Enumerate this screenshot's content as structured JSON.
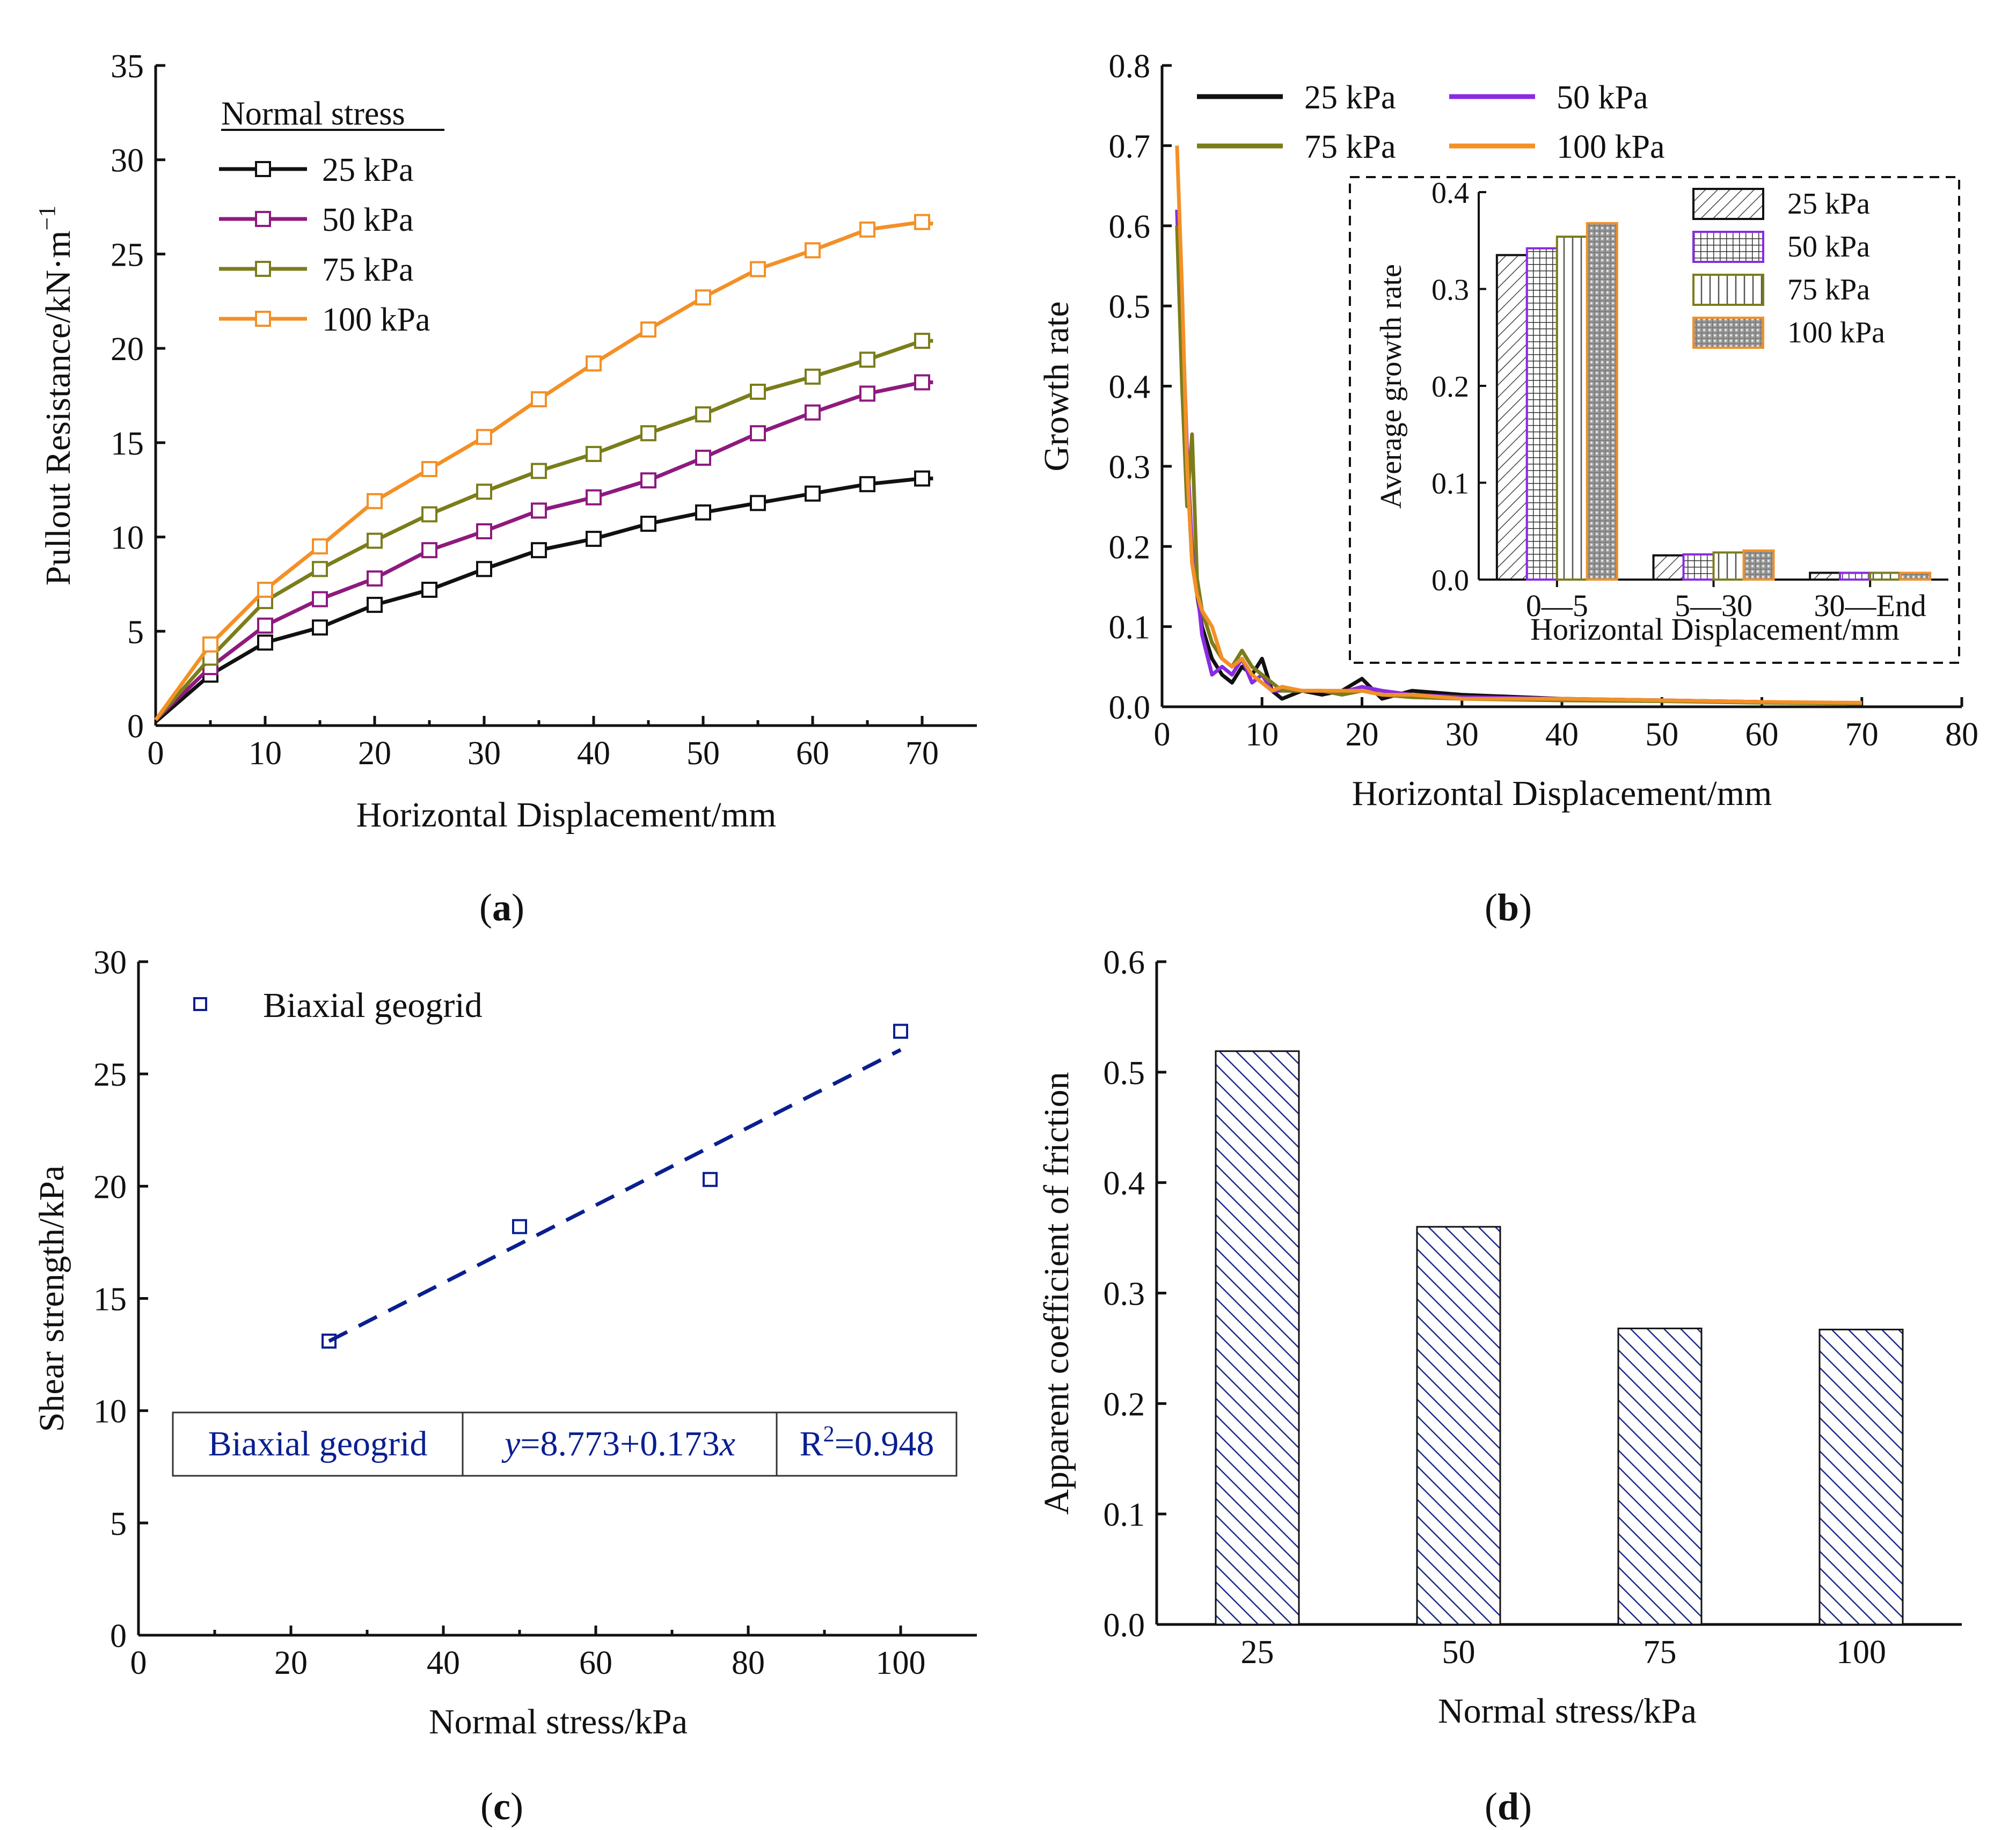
{
  "captions": {
    "a": "(a)",
    "b": "(b)",
    "c": "(c)",
    "d": "(d)"
  },
  "colors": {
    "s25": "#111111",
    "s50": "#8e1a7e",
    "s75": "#7b7d1b",
    "s100": "#f39026",
    "s50_b": "#8a2be2",
    "fit_blue": "#0a1f8f",
    "hatch_blue": "#1b2a8a"
  },
  "chart_data": [
    {
      "id": "a",
      "type": "line",
      "xlabel": "Horizontal Displacement/mm",
      "ylabel": "Pullout Resistance/kN·m",
      "ylabel_sup": "−1",
      "xlim": [
        0,
        75
      ],
      "ylim": [
        0,
        35
      ],
      "xticks": [
        0,
        10,
        20,
        30,
        40,
        50,
        60,
        70
      ],
      "yticks": [
        0,
        5,
        10,
        15,
        20,
        25,
        30,
        35
      ],
      "legend_title": "Normal stress",
      "series": [
        {
          "name": "25 kPa",
          "color": "#111111",
          "x": [
            0,
            5,
            10,
            15,
            20,
            25,
            30,
            35,
            40,
            45,
            50,
            55,
            60,
            65,
            70,
            71
          ],
          "y": [
            0.2,
            2.7,
            4.4,
            5.2,
            6.4,
            7.2,
            8.3,
            9.3,
            9.9,
            10.7,
            11.3,
            11.8,
            12.3,
            12.8,
            13.1,
            13.1
          ]
        },
        {
          "name": "50 kPa",
          "color": "#8e1a7e",
          "x": [
            0,
            5,
            10,
            15,
            20,
            25,
            30,
            35,
            40,
            45,
            50,
            55,
            60,
            65,
            70,
            71
          ],
          "y": [
            0.3,
            3.1,
            5.3,
            6.7,
            7.8,
            9.3,
            10.3,
            11.4,
            12.1,
            13.0,
            14.2,
            15.5,
            16.6,
            17.6,
            18.2,
            18.2
          ]
        },
        {
          "name": "75 kPa",
          "color": "#7b7d1b",
          "x": [
            0,
            5,
            10,
            15,
            20,
            25,
            30,
            35,
            40,
            45,
            50,
            55,
            60,
            65,
            70,
            71
          ],
          "y": [
            0.3,
            3.6,
            6.6,
            8.3,
            9.8,
            11.2,
            12.4,
            13.5,
            14.4,
            15.5,
            16.5,
            17.7,
            18.5,
            19.4,
            20.4,
            20.4
          ]
        },
        {
          "name": "100 kPa",
          "color": "#f39026",
          "x": [
            0,
            5,
            10,
            15,
            20,
            25,
            30,
            35,
            40,
            45,
            50,
            55,
            60,
            65,
            70,
            71
          ],
          "y": [
            0.3,
            4.3,
            7.2,
            9.5,
            11.9,
            13.6,
            15.3,
            17.3,
            19.2,
            21.0,
            22.7,
            24.2,
            25.2,
            26.3,
            26.7,
            26.6
          ]
        }
      ]
    },
    {
      "id": "b",
      "type": "line",
      "xlabel": "Horizontal Displacement/mm",
      "ylabel": "Growth rate",
      "xlim": [
        0,
        80
      ],
      "ylim": [
        0,
        0.8
      ],
      "xticks": [
        0,
        10,
        20,
        30,
        40,
        50,
        60,
        70,
        80
      ],
      "yticks": [
        0.0,
        0.1,
        0.2,
        0.3,
        0.4,
        0.5,
        0.6,
        0.7,
        0.8
      ],
      "series": [
        {
          "name": "25 kPa",
          "color": "#111111",
          "x": [
            1.5,
            2,
            2.5,
            3,
            3.5,
            4,
            5,
            6,
            7,
            8,
            9,
            10,
            11,
            12,
            14,
            16,
            18,
            20,
            22,
            25,
            30,
            40,
            50,
            60,
            70
          ],
          "y": [
            0.62,
            0.45,
            0.3,
            0.18,
            0.14,
            0.1,
            0.06,
            0.04,
            0.03,
            0.05,
            0.04,
            0.06,
            0.02,
            0.01,
            0.02,
            0.015,
            0.02,
            0.035,
            0.01,
            0.02,
            0.015,
            0.01,
            0.008,
            0.006,
            0.004
          ]
        },
        {
          "name": "50 kPa",
          "color": "#8a2be2",
          "x": [
            1.5,
            2,
            2.5,
            3,
            3.5,
            4,
            5,
            6,
            7,
            8,
            9,
            10,
            11,
            12,
            14,
            16,
            18,
            20,
            22,
            25,
            30,
            40,
            50,
            60,
            70
          ],
          "y": [
            0.62,
            0.5,
            0.32,
            0.2,
            0.15,
            0.09,
            0.04,
            0.05,
            0.04,
            0.06,
            0.03,
            0.04,
            0.02,
            0.02,
            0.02,
            0.02,
            0.018,
            0.025,
            0.02,
            0.015,
            0.012,
            0.01,
            0.008,
            0.006,
            0.004
          ]
        },
        {
          "name": "75 kPa",
          "color": "#7b7d1b",
          "x": [
            1.5,
            2,
            2.5,
            3,
            3.5,
            4,
            5,
            6,
            7,
            8,
            9,
            10,
            11,
            12,
            14,
            16,
            18,
            20,
            22,
            25,
            30,
            40,
            50,
            60,
            70
          ],
          "y": [
            0.6,
            0.4,
            0.25,
            0.34,
            0.16,
            0.12,
            0.08,
            0.06,
            0.05,
            0.07,
            0.05,
            0.04,
            0.03,
            0.02,
            0.02,
            0.02,
            0.015,
            0.02,
            0.015,
            0.012,
            0.01,
            0.008,
            0.007,
            0.005,
            0.004
          ]
        },
        {
          "name": "100 kPa",
          "color": "#f39026",
          "x": [
            1.5,
            2,
            2.5,
            3,
            3.5,
            4,
            5,
            6,
            7,
            8,
            9,
            10,
            11,
            12,
            14,
            16,
            18,
            20,
            22,
            25,
            30,
            40,
            50,
            60,
            70
          ],
          "y": [
            0.7,
            0.52,
            0.3,
            0.18,
            0.14,
            0.12,
            0.1,
            0.06,
            0.05,
            0.06,
            0.04,
            0.03,
            0.02,
            0.025,
            0.02,
            0.02,
            0.02,
            0.02,
            0.015,
            0.015,
            0.01,
            0.01,
            0.008,
            0.006,
            0.005
          ]
        }
      ],
      "inset": {
        "type": "bar",
        "ylabel": "Average growth rate",
        "xlabel": "Horizontal Displacement/mm",
        "categories": [
          "0—5",
          "5—30",
          "30—End"
        ],
        "ylim": [
          0,
          0.4
        ],
        "yticks": [
          0.0,
          0.1,
          0.2,
          0.3,
          0.4
        ],
        "series": [
          {
            "name": "25 kPa",
            "color": "#111111",
            "values": [
              0.335,
              0.025,
              0.007
            ]
          },
          {
            "name": "50 kPa",
            "color": "#8a2be2",
            "values": [
              0.342,
              0.026,
              0.007
            ]
          },
          {
            "name": "75 kPa",
            "color": "#7b7d1b",
            "values": [
              0.354,
              0.028,
              0.007
            ]
          },
          {
            "name": "100 kPa",
            "color": "#f39026",
            "values": [
              0.368,
              0.03,
              0.007
            ]
          }
        ]
      }
    },
    {
      "id": "c",
      "type": "scatter",
      "xlabel": "Normal stress/kPa",
      "ylabel": "Shear strength/kPa",
      "xlim": [
        0,
        110
      ],
      "ylim": [
        0,
        30
      ],
      "xticks": [
        0,
        20,
        40,
        60,
        80,
        100
      ],
      "yticks": [
        0,
        5,
        10,
        15,
        20,
        25,
        30
      ],
      "legend": "Biaxial geogrid",
      "points": {
        "x": [
          25,
          50,
          75,
          100
        ],
        "y": [
          13.1,
          18.2,
          20.3,
          26.9
        ]
      },
      "fit": {
        "intercept": 8.773,
        "slope": 0.173,
        "x_range": [
          25,
          100
        ]
      },
      "fit_table": {
        "name": "Biaxial geogrid",
        "eq_y": "y",
        "eq_rest": "=8.773+0.173",
        "eq_x": "x",
        "r2_pre": "R",
        "r2_sup": "2",
        "r2_post": "=0.948"
      }
    },
    {
      "id": "d",
      "type": "bar",
      "xlabel": "Normal stress/kPa",
      "ylabel": "Apparent coefficient of friction",
      "categories": [
        "25",
        "50",
        "75",
        "100"
      ],
      "values": [
        0.519,
        0.36,
        0.268,
        0.267
      ],
      "ylim": [
        0,
        0.6
      ],
      "yticks": [
        0.0,
        0.1,
        0.2,
        0.3,
        0.4,
        0.5,
        0.6
      ]
    }
  ]
}
